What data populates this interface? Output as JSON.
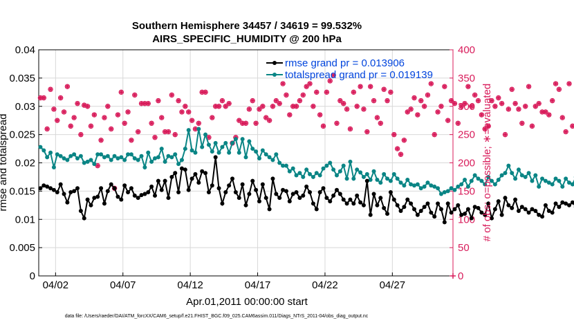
{
  "title_line1": "Southern Hemisphere 34457 / 34619 = 99.532%",
  "title_line2": "AIRS_SPECIFIC_HUMIDITY @ 200 hPa",
  "footer": "data file: /Users/raeder/DAI/ATM_forcXX/CAM6_setup/f.e21.FHIST_BGC.f09_025.CAM6assim.011/Diags_NTrS_2011-04/obs_diag_output.nc",
  "colors": {
    "rmse": "#000000",
    "spread": "#0a8585",
    "obs": "#d81b5a",
    "legend_text": "#0044dd"
  },
  "chart_data": {
    "type": "line",
    "xlabel": "Apr.01,2011 00:00:00 start",
    "ylabel_left": "rmse and totalspread",
    "ylabel_right": "# of obs: o=possible; ∗=evaluated",
    "x_unit": "day of April 2011",
    "xlim": [
      0.75,
      31.5
    ],
    "ylim_left": [
      0,
      0.04
    ],
    "ylim_right": [
      0,
      400
    ],
    "x_ticks": [
      2,
      7,
      12,
      17,
      22,
      27
    ],
    "x_tick_labels": [
      "04/02",
      "04/07",
      "04/12",
      "04/17",
      "04/22",
      "04/27"
    ],
    "y_ticks_left": [
      0,
      0.005,
      0.01,
      0.015,
      0.02,
      0.025,
      0.03,
      0.035,
      0.04
    ],
    "y_tick_labels_left": [
      "0",
      "0.005",
      "0.01",
      "0.015",
      "0.02",
      "0.025",
      "0.03",
      "0.035",
      "0.04"
    ],
    "y_ticks_right": [
      0,
      50,
      100,
      150,
      200,
      250,
      300,
      350,
      400
    ],
    "y_tick_labels_right": [
      "0",
      "50",
      "100",
      "150",
      "200",
      "250",
      "300",
      "350",
      "400"
    ],
    "grid": true,
    "legend_position": "top-right",
    "series": [
      {
        "name": "rmse grand pr = 0.013906",
        "axis": "left",
        "x_start": 0.875,
        "x_step": 0.25,
        "values": [
          0.0155,
          0.016,
          0.0158,
          0.0155,
          0.0152,
          0.0148,
          0.0162,
          0.0145,
          0.013,
          0.0148,
          0.015,
          0.0155,
          0.0115,
          0.0102,
          0.0135,
          0.0125,
          0.0138,
          0.014,
          0.0155,
          0.0128,
          0.015,
          0.0162,
          0.0155,
          0.014,
          0.0135,
          0.016,
          0.0148,
          0.0155,
          0.0142,
          0.0138,
          0.0143,
          0.0145,
          0.0148,
          0.0158,
          0.0142,
          0.0168,
          0.0152,
          0.0168,
          0.0138,
          0.0175,
          0.0182,
          0.0148,
          0.019,
          0.0188,
          0.0152,
          0.0172,
          0.018,
          0.0165,
          0.0185,
          0.0182,
          0.0148,
          0.016,
          0.021,
          0.0155,
          0.0128,
          0.0148,
          0.016,
          0.0172,
          0.0148,
          0.0138,
          0.0162,
          0.0125,
          0.0145,
          0.0168,
          0.0152,
          0.0132,
          0.0162,
          0.0138,
          0.0118,
          0.0172,
          0.0145,
          0.0138,
          0.0152,
          0.015,
          0.0132,
          0.0145,
          0.0148,
          0.0138,
          0.0142,
          0.0158,
          0.0148,
          0.0128,
          0.0118,
          0.0148,
          0.0155,
          0.0138,
          0.0132,
          0.0142,
          0.0152,
          0.0145,
          0.0135,
          0.0128,
          0.0135,
          0.0128,
          0.0142,
          0.013,
          0.0125,
          0.0168,
          0.0108,
          0.0145,
          0.0125,
          0.0138,
          0.012,
          0.011,
          0.0148,
          0.0135,
          0.0125,
          0.0115,
          0.0122,
          0.0135,
          0.0128,
          0.0118,
          0.0108,
          0.0115,
          0.0122,
          0.0128,
          0.0112,
          0.0105,
          0.0128,
          0.0118,
          0.0095,
          0.0128,
          0.0112,
          0.0118,
          0.0125,
          0.0108,
          0.011,
          0.0118,
          0.0102,
          0.0122,
          0.012,
          0.0112,
          0.0108,
          0.0128,
          0.0102,
          0.0118,
          0.0132,
          0.0108,
          0.0138,
          0.0125,
          0.012,
          0.0135,
          0.0115,
          0.0122,
          0.0118,
          0.0112,
          0.0118,
          0.0115,
          0.0108,
          0.0105,
          0.0125,
          0.0115,
          0.0112,
          0.0128,
          0.0122,
          0.013,
          0.0128,
          0.0125,
          0.013,
          0.0122,
          0.012,
          0.0122,
          0.0125
        ]
      },
      {
        "name": "totalspread grand pr = 0.019139",
        "axis": "left",
        "x_start": 0.875,
        "x_step": 0.25,
        "values": [
          0.0228,
          0.0222,
          0.021,
          0.0218,
          0.0192,
          0.0215,
          0.0212,
          0.0208,
          0.0205,
          0.0212,
          0.0215,
          0.0208,
          0.0212,
          0.02,
          0.0202,
          0.0205,
          0.0198,
          0.0215,
          0.0215,
          0.021,
          0.0212,
          0.0205,
          0.0212,
          0.0208,
          0.021,
          0.0205,
          0.0215,
          0.0215,
          0.0208,
          0.0205,
          0.0212,
          0.0192,
          0.0218,
          0.0202,
          0.0208,
          0.021,
          0.0225,
          0.0202,
          0.0212,
          0.021,
          0.0215,
          0.0198,
          0.0205,
          0.0225,
          0.0258,
          0.0222,
          0.0218,
          0.026,
          0.0228,
          0.025,
          0.0232,
          0.022,
          0.0235,
          0.0218,
          0.0228,
          0.0235,
          0.0218,
          0.0235,
          0.0242,
          0.0218,
          0.0242,
          0.021,
          0.0238,
          0.0225,
          0.022,
          0.0208,
          0.0222,
          0.0215,
          0.021,
          0.0205,
          0.0215,
          0.02,
          0.0195,
          0.0195,
          0.0185,
          0.019,
          0.0178,
          0.0182,
          0.0175,
          0.0188,
          0.018,
          0.0175,
          0.0182,
          0.0178,
          0.019,
          0.0195,
          0.02,
          0.0188,
          0.0178,
          0.0185,
          0.0195,
          0.0172,
          0.0202,
          0.0172,
          0.0188,
          0.0183,
          0.0175,
          0.018,
          0.017,
          0.0185,
          0.017,
          0.0165,
          0.018,
          0.0172,
          0.0168,
          0.018,
          0.0172,
          0.0165,
          0.016,
          0.017,
          0.0162,
          0.016,
          0.0162,
          0.0155,
          0.0158,
          0.0165,
          0.016,
          0.0158,
          0.0155,
          0.0145,
          0.0148,
          0.015,
          0.0155,
          0.0152,
          0.0158,
          0.0162,
          0.017,
          0.0158,
          0.0168,
          0.0178,
          0.0172,
          0.0168,
          0.0162,
          0.0175,
          0.0168,
          0.0162,
          0.017,
          0.0178,
          0.0182,
          0.0195,
          0.0182,
          0.0172,
          0.0188,
          0.0178,
          0.0175,
          0.0182,
          0.0168,
          0.0178,
          0.0158,
          0.0172,
          0.0168,
          0.0165,
          0.0162,
          0.0172,
          0.0168,
          0.0158,
          0.0172,
          0.0165,
          0.0162,
          0.0175,
          0.0168,
          0.016
        ]
      },
      {
        "name": "# of obs possible",
        "axis": "right",
        "marker": "o",
        "x_start": 0.875,
        "x_step": 0.25,
        "values": [
          315,
          315,
          260,
          330,
          295,
          275,
          315,
          290,
          335,
          265,
          280,
          305,
          250,
          302,
          300,
          265,
          285,
          195,
          240,
          280,
          300,
          260,
          155,
          285,
          325,
          270,
          290,
          240,
          320,
          255,
          305,
          305,
          305,
          270,
          245,
          310,
          280,
          255,
          255,
          320,
          250,
          310,
          290,
          300,
          290,
          275,
          260,
          270,
          325,
          325,
          245,
          280,
          300,
          300,
          310,
          300,
          305,
          235,
          245,
          275,
          270,
          270,
          295,
          310,
          270,
          295,
          300,
          280,
          275,
          300,
          310,
          305,
          340,
          320,
          285,
          300,
          300,
          310,
          320,
          335,
          340,
          300,
          325,
          285,
          265,
          325,
          345,
          355,
          270,
          310,
          305,
          295,
          260,
          325,
          300,
          335,
          295,
          255,
          335,
          310,
          280,
          270,
          330,
          310,
          325,
          250,
          225,
          215,
          240,
          290,
          295,
          315,
          285,
          310,
          300,
          320,
          340,
          250,
          290,
          300,
          335,
          275,
          310,
          305,
          270,
          300,
          305,
          335,
          300,
          320,
          310,
          285,
          260,
          265,
          310,
          300,
          315,
          305,
          250,
          295,
          330,
          305,
          295,
          270,
          300,
          335,
          265,
          300,
          305,
          290,
          290,
          285,
          310,
          340,
          330,
          280,
          255,
          340,
          265
        ]
      },
      {
        "name": "# of obs evaluated",
        "axis": "right",
        "marker": "*",
        "x_start": 0.875,
        "x_step": 0.25,
        "values": [
          315,
          315,
          260,
          330,
          295,
          275,
          315,
          290,
          335,
          265,
          280,
          305,
          250,
          302,
          300,
          265,
          285,
          195,
          240,
          280,
          300,
          260,
          155,
          285,
          325,
          270,
          290,
          240,
          320,
          255,
          305,
          305,
          305,
          270,
          245,
          310,
          280,
          255,
          255,
          320,
          250,
          310,
          290,
          300,
          290,
          275,
          260,
          270,
          325,
          325,
          245,
          280,
          300,
          300,
          310,
          300,
          305,
          235,
          245,
          275,
          270,
          270,
          295,
          310,
          270,
          295,
          300,
          280,
          275,
          300,
          310,
          305,
          340,
          320,
          285,
          300,
          300,
          310,
          320,
          335,
          340,
          300,
          325,
          285,
          265,
          325,
          345,
          355,
          270,
          310,
          305,
          295,
          260,
          325,
          300,
          335,
          295,
          255,
          335,
          310,
          280,
          270,
          330,
          310,
          325,
          250,
          225,
          215,
          240,
          290,
          295,
          315,
          285,
          310,
          300,
          320,
          340,
          250,
          290,
          300,
          335,
          275,
          310,
          305,
          270,
          300,
          305,
          335,
          300,
          320,
          310,
          285,
          260,
          265,
          310,
          300,
          315,
          305,
          250,
          295,
          330,
          305,
          295,
          270,
          300,
          335,
          265,
          300,
          305,
          290,
          290,
          285,
          310,
          340,
          330,
          280,
          255,
          340,
          265
        ]
      }
    ]
  }
}
